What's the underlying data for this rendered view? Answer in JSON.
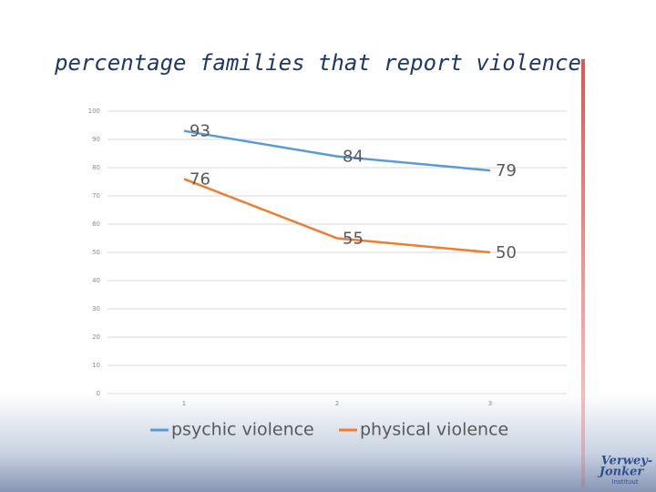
{
  "chart_data": {
    "type": "line",
    "title": "percentage families that report violence",
    "categories": [
      "1",
      "2",
      "3"
    ],
    "series": [
      {
        "name": "psychic violence",
        "color": "#5b9bd5",
        "values": [
          93,
          84,
          79
        ]
      },
      {
        "name": "physical violence",
        "color": "#ed7d31",
        "values": [
          76,
          55,
          50
        ]
      }
    ],
    "ylim": [
      0,
      100
    ],
    "yticks": [
      0,
      10,
      20,
      30,
      40,
      50,
      60,
      70,
      80,
      90,
      100
    ],
    "grid": true,
    "legend": "bottom"
  },
  "logo": {
    "line1": "Verwey-",
    "line2": "Jonker",
    "line3": "Instituut"
  }
}
